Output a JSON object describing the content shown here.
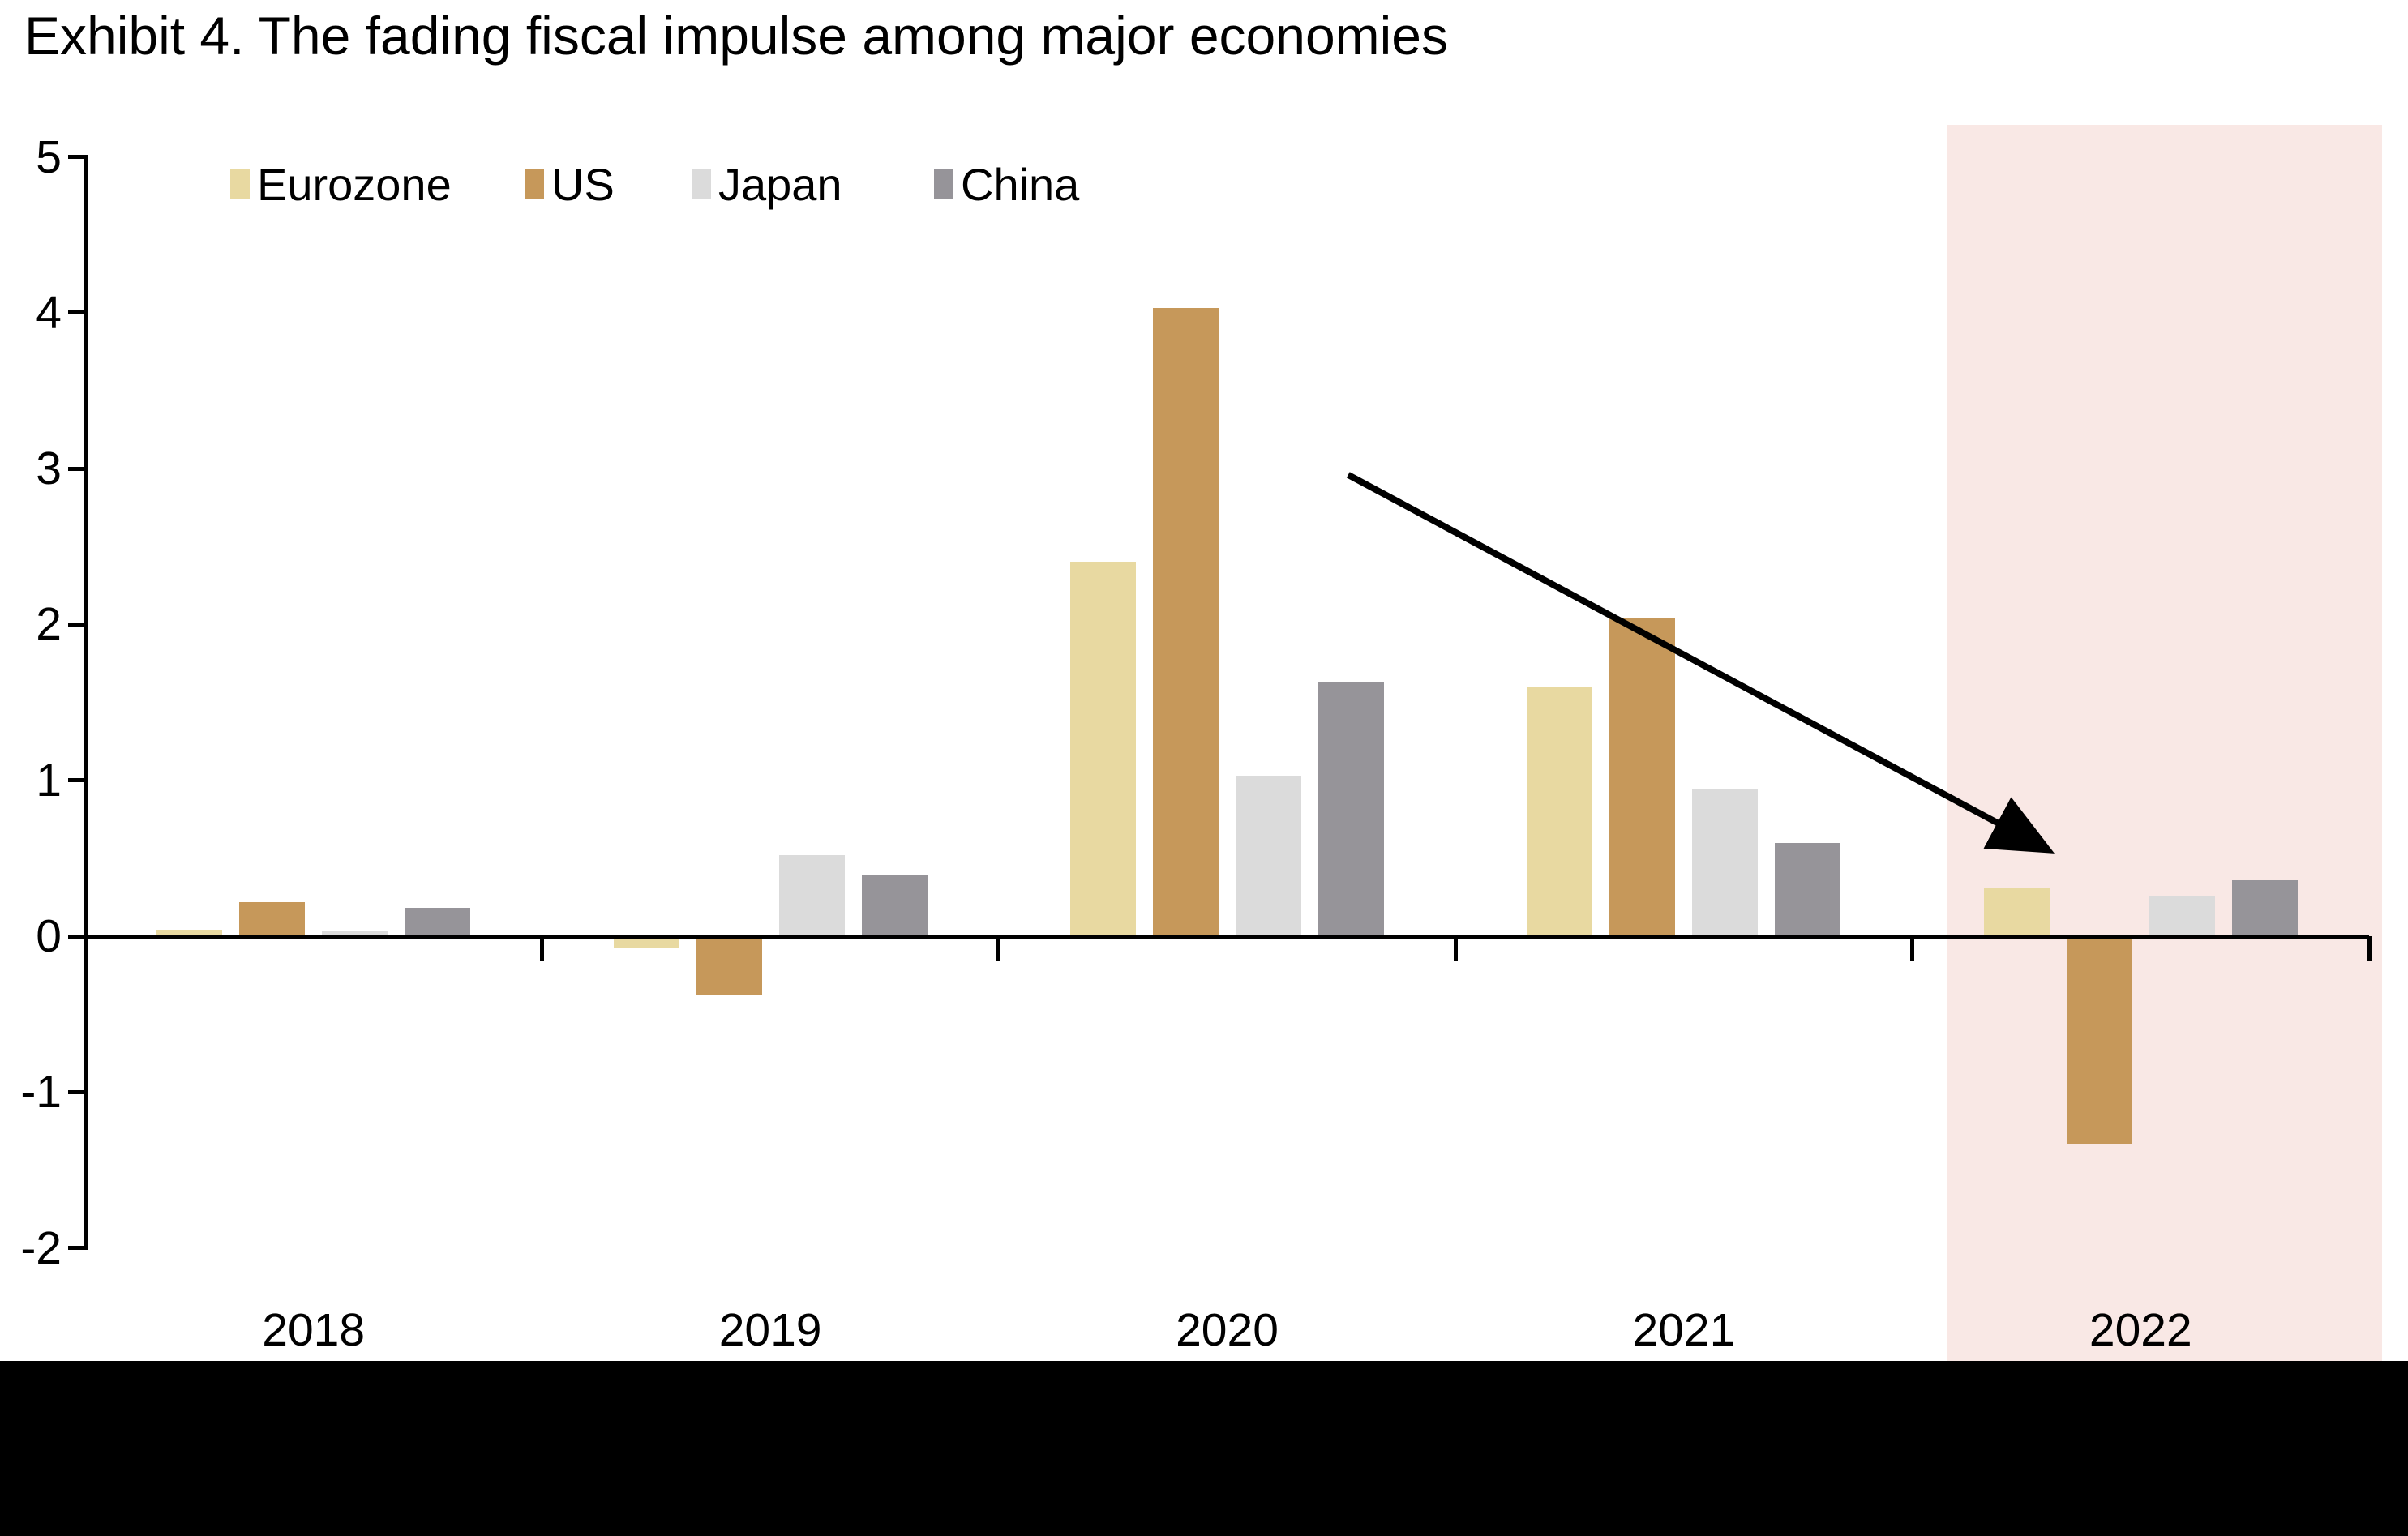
{
  "title": "Exhibit 4. The fading fiscal impulse among major economies",
  "colors": {
    "background": "#ffffff",
    "axis": "#000000",
    "text": "#000000",
    "highlight_band": "#f9e8e5",
    "footer_bar": "#000000",
    "arrow": "#000000"
  },
  "chart_data": {
    "type": "bar",
    "title": "Exhibit 4. The fading fiscal impulse among major economies",
    "xlabel": "",
    "ylabel": "",
    "categories": [
      "2018",
      "2019",
      "2020",
      "2021",
      "2022"
    ],
    "series": [
      {
        "name": "Eurozone",
        "color": "#e8d9a1",
        "values": [
          0.04,
          -0.08,
          2.4,
          1.6,
          0.31
        ]
      },
      {
        "name": "US",
        "color": "#c6985a",
        "values": [
          0.22,
          -0.38,
          4.03,
          2.04,
          -1.33
        ]
      },
      {
        "name": "Japan",
        "color": "#dbdbdb",
        "values": [
          0.03,
          0.52,
          1.03,
          0.94,
          0.26
        ]
      },
      {
        "name": "China",
        "color": "#969499",
        "values": [
          0.18,
          0.39,
          1.63,
          0.6,
          0.36
        ]
      }
    ],
    "ylim": [
      -2,
      5
    ],
    "yticks": [
      5,
      4,
      3,
      2,
      1,
      0,
      -1,
      -2
    ],
    "grid": false,
    "legend_position": "top-left-inside",
    "highlight_region": {
      "category": "2022",
      "color": "#f9e8e5"
    },
    "annotation": {
      "type": "arrow",
      "meaning": "declining fiscal impulse trend",
      "from": {
        "x_frac": 0.553,
        "y_value": 2.96
      },
      "to": {
        "x_frac": 0.856,
        "y_value": 0.58
      }
    }
  }
}
